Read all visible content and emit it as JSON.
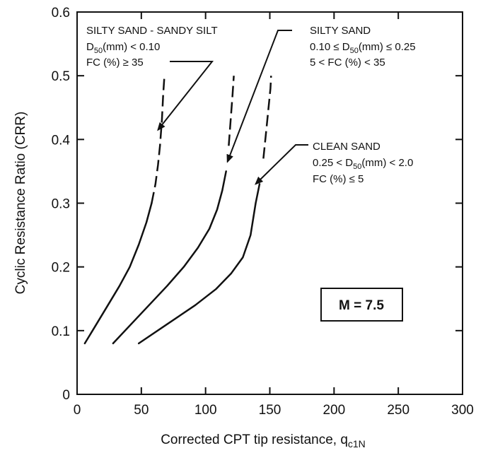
{
  "chart_data": {
    "type": "line",
    "xlabel": "Corrected CPT tip resistance, q",
    "xlabel_sub": "c1N",
    "ylabel": "Cyclic Resistance Ratio (CRR)",
    "xlim": [
      0,
      300
    ],
    "ylim": [
      0,
      0.6
    ],
    "x_ticks": [
      "0",
      "50",
      "100",
      "150",
      "200",
      "250",
      "300"
    ],
    "y_ticks": [
      "0",
      "0.1",
      "0.2",
      "0.3",
      "0.4",
      "0.5",
      "0.6"
    ],
    "x_tick_values": [
      0,
      50,
      100,
      150,
      200,
      250,
      300
    ],
    "y_tick_values": [
      0,
      0.1,
      0.2,
      0.3,
      0.4,
      0.5,
      0.6
    ],
    "grid": false,
    "magnitude_label": "M = 7.5",
    "series": [
      {
        "name": "SILTY SAND - SANDY SILT",
        "points": [
          [
            6,
            0.08
          ],
          [
            15,
            0.11
          ],
          [
            24,
            0.14
          ],
          [
            33,
            0.17
          ],
          [
            41,
            0.2
          ],
          [
            48,
            0.235
          ],
          [
            54,
            0.27
          ],
          [
            58,
            0.3
          ],
          [
            61,
            0.33
          ],
          [
            63,
            0.36
          ],
          [
            64.5,
            0.39
          ],
          [
            66,
            0.43
          ],
          [
            67,
            0.47
          ],
          [
            68,
            0.5
          ]
        ],
        "dashed_above": 0.3
      },
      {
        "name": "SILTY SAND",
        "points": [
          [
            28,
            0.08
          ],
          [
            42,
            0.11
          ],
          [
            56,
            0.14
          ],
          [
            70,
            0.17
          ],
          [
            83,
            0.2
          ],
          [
            94,
            0.23
          ],
          [
            103,
            0.26
          ],
          [
            109,
            0.29
          ],
          [
            113,
            0.32
          ],
          [
            116,
            0.35
          ],
          [
            118,
            0.39
          ],
          [
            119.5,
            0.43
          ],
          [
            121,
            0.47
          ],
          [
            122,
            0.5
          ]
        ],
        "dashed_above": 0.38
      },
      {
        "name": "CLEAN SAND",
        "points": [
          [
            48,
            0.08
          ],
          [
            70,
            0.11
          ],
          [
            92,
            0.14
          ],
          [
            108,
            0.165
          ],
          [
            120,
            0.19
          ],
          [
            129,
            0.215
          ],
          [
            135,
            0.25
          ],
          [
            139,
            0.3
          ],
          [
            142,
            0.33
          ],
          [
            145,
            0.37
          ],
          [
            147,
            0.41
          ],
          [
            149,
            0.45
          ],
          [
            150.5,
            0.48
          ],
          [
            151,
            0.5
          ]
        ],
        "dashed_above": 0.34
      }
    ],
    "annotations": [
      {
        "id": "silty-sandy-silt",
        "lines": [
          {
            "text": "SILTY SAND - SANDY SILT"
          },
          {
            "main": "D",
            "sub": "50",
            "rest": "(mm) < 0.10"
          },
          {
            "text": "FC (%) ≥ 35"
          }
        ]
      },
      {
        "id": "silty-sand",
        "lines": [
          {
            "text": "SILTY SAND"
          },
          {
            "pre": "0.10 ≤ ",
            "main": "D",
            "sub": "50",
            "rest": "(mm) ≤ 0.25"
          },
          {
            "text": "5 < FC (%) < 35"
          }
        ]
      },
      {
        "id": "clean-sand",
        "lines": [
          {
            "text": "CLEAN SAND"
          },
          {
            "pre": "0.25 < ",
            "main": "D",
            "sub": "50",
            "rest": "(mm) < 2.0"
          },
          {
            "text": "FC (%) ≤ 5"
          }
        ]
      }
    ]
  }
}
